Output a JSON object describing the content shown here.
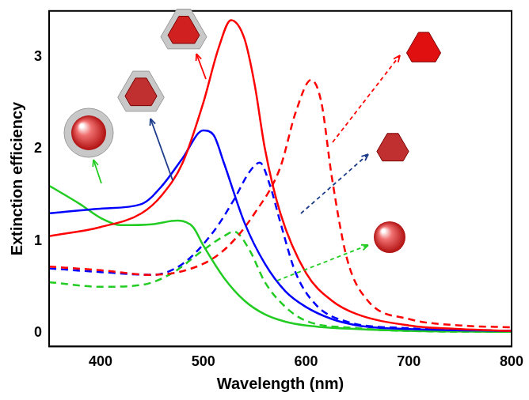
{
  "chart_data": {
    "type": "line",
    "x_label": "Wavelength (nm)",
    "y_label": "Extinction efficiency",
    "xlim": [
      350,
      800
    ],
    "xticks": [
      400,
      500,
      600,
      700,
      800
    ],
    "ylim": [
      -0.15,
      3.5
    ],
    "yticks": [
      0,
      1,
      2,
      3
    ],
    "grid": false,
    "series": [
      {
        "color": "#ff0000",
        "line_style": "solid",
        "x": [
          350,
          400,
          440,
          460,
          480,
          500,
          515,
          527,
          540,
          550,
          560,
          575,
          600,
          625,
          650,
          700,
          750,
          800
        ],
        "values": [
          1.05,
          1.15,
          1.3,
          1.5,
          1.85,
          2.5,
          3.1,
          3.4,
          3.2,
          2.7,
          2.0,
          1.3,
          0.65,
          0.35,
          0.2,
          0.08,
          0.04,
          0.02
        ]
      },
      {
        "color": "#0000ff",
        "line_style": "solid",
        "x": [
          350,
          400,
          440,
          460,
          480,
          500,
          510,
          520,
          540,
          560,
          580,
          600,
          625,
          650,
          700,
          800
        ],
        "values": [
          1.3,
          1.35,
          1.4,
          1.6,
          1.9,
          2.2,
          2.15,
          1.85,
          1.2,
          0.75,
          0.45,
          0.28,
          0.15,
          0.08,
          0.04,
          0.02
        ]
      },
      {
        "color": "#22cc22",
        "line_style": "solid",
        "x": [
          350,
          380,
          400,
          420,
          450,
          475,
          490,
          500,
          520,
          540,
          560,
          580,
          600,
          650,
          700,
          800
        ],
        "values": [
          1.6,
          1.4,
          1.25,
          1.17,
          1.18,
          1.22,
          1.15,
          0.95,
          0.6,
          0.35,
          0.2,
          0.12,
          0.08,
          0.04,
          0.02,
          0.01
        ]
      },
      {
        "color": "#ff0000",
        "line_style": "dashed",
        "x": [
          350,
          400,
          450,
          500,
          525,
          550,
          575,
          590,
          605,
          615,
          625,
          640,
          660,
          700,
          750,
          800
        ],
        "values": [
          0.72,
          0.68,
          0.63,
          0.75,
          0.95,
          1.3,
          1.8,
          2.4,
          2.75,
          2.5,
          1.7,
          0.8,
          0.35,
          0.15,
          0.08,
          0.06
        ]
      },
      {
        "color": "#0000ff",
        "line_style": "dashed",
        "x": [
          350,
          400,
          450,
          480,
          510,
          530,
          545,
          555,
          565,
          575,
          590,
          610,
          640,
          700,
          800
        ],
        "values": [
          0.7,
          0.66,
          0.63,
          0.75,
          1.1,
          1.45,
          1.75,
          1.85,
          1.6,
          1.2,
          0.65,
          0.3,
          0.12,
          0.05,
          0.02
        ]
      },
      {
        "color": "#22cc22",
        "line_style": "dashed",
        "x": [
          350,
          400,
          440,
          470,
          500,
          520,
          530,
          545,
          560,
          580,
          600,
          650,
          700,
          800
        ],
        "values": [
          0.55,
          0.5,
          0.52,
          0.65,
          0.9,
          1.05,
          1.1,
          0.9,
          0.55,
          0.28,
          0.13,
          0.05,
          0.02,
          0.01
        ]
      }
    ]
  }
}
